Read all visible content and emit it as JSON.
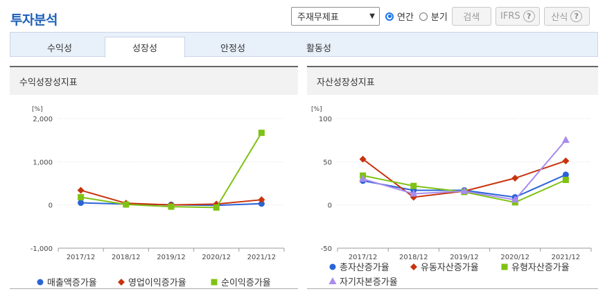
{
  "title": "투자분석",
  "controls": {
    "select_value": "주재무제표",
    "radio_annual": "연간",
    "radio_quarter": "분기",
    "search_label": "검색",
    "ifrs_label": "IFRS",
    "formula_label": "산식",
    "help_glyph": "?"
  },
  "tabs": [
    {
      "label": "수익성",
      "active": false
    },
    {
      "label": "성장성",
      "active": true
    },
    {
      "label": "안정성",
      "active": false
    },
    {
      "label": "활동성",
      "active": false
    }
  ],
  "panels": [
    {
      "title": "수익성장성지표"
    },
    {
      "title": "자산성장성지표"
    }
  ],
  "chart_data": [
    {
      "type": "line",
      "title": "수익성장성지표",
      "unit": "[%]",
      "categories": [
        "2017/12",
        "2018/12",
        "2019/12",
        "2020/12",
        "2021/12"
      ],
      "ylim": [
        -1000,
        2000
      ],
      "yticks": [
        -1000,
        0,
        1000,
        2000
      ],
      "ytick_labels": [
        "-1,000",
        "0",
        "1,000",
        "2,000"
      ],
      "grid": true,
      "legend": "bottom",
      "series": [
        {
          "name": "매출액증가율",
          "color": "#2a64d6",
          "marker": "circle",
          "values": [
            50,
            20,
            5,
            -10,
            30
          ]
        },
        {
          "name": "영업이익증가율",
          "color": "#c8330d",
          "marker": "diamond",
          "values": [
            340,
            40,
            0,
            20,
            120
          ]
        },
        {
          "name": "순이익증가율",
          "color": "#7fc214",
          "marker": "square",
          "values": [
            180,
            10,
            -40,
            -60,
            1670
          ]
        }
      ]
    },
    {
      "type": "line",
      "title": "자산성장성지표",
      "unit": "[%]",
      "categories": [
        "2017/12",
        "2018/12",
        "2019/12",
        "2020/12",
        "2021/12"
      ],
      "ylim": [
        -50,
        100
      ],
      "yticks": [
        -50,
        0,
        50,
        100
      ],
      "ytick_labels": [
        "-50",
        "0",
        "50",
        "100"
      ],
      "grid": true,
      "legend": "bottom",
      "series": [
        {
          "name": "총자산증가율",
          "color": "#2a64d6",
          "marker": "circle",
          "values": [
            28,
            17,
            17,
            9,
            35
          ]
        },
        {
          "name": "유동자산증가율",
          "color": "#c8330d",
          "marker": "diamond",
          "values": [
            53,
            9,
            16,
            31,
            51
          ]
        },
        {
          "name": "유형자산증가율",
          "color": "#7fc214",
          "marker": "square",
          "values": [
            34,
            22,
            15,
            3,
            29
          ]
        },
        {
          "name": "자기자본증가율",
          "color": "#a88bee",
          "marker": "triangle",
          "values": [
            30,
            13,
            16,
            6,
            75
          ]
        }
      ]
    }
  ]
}
